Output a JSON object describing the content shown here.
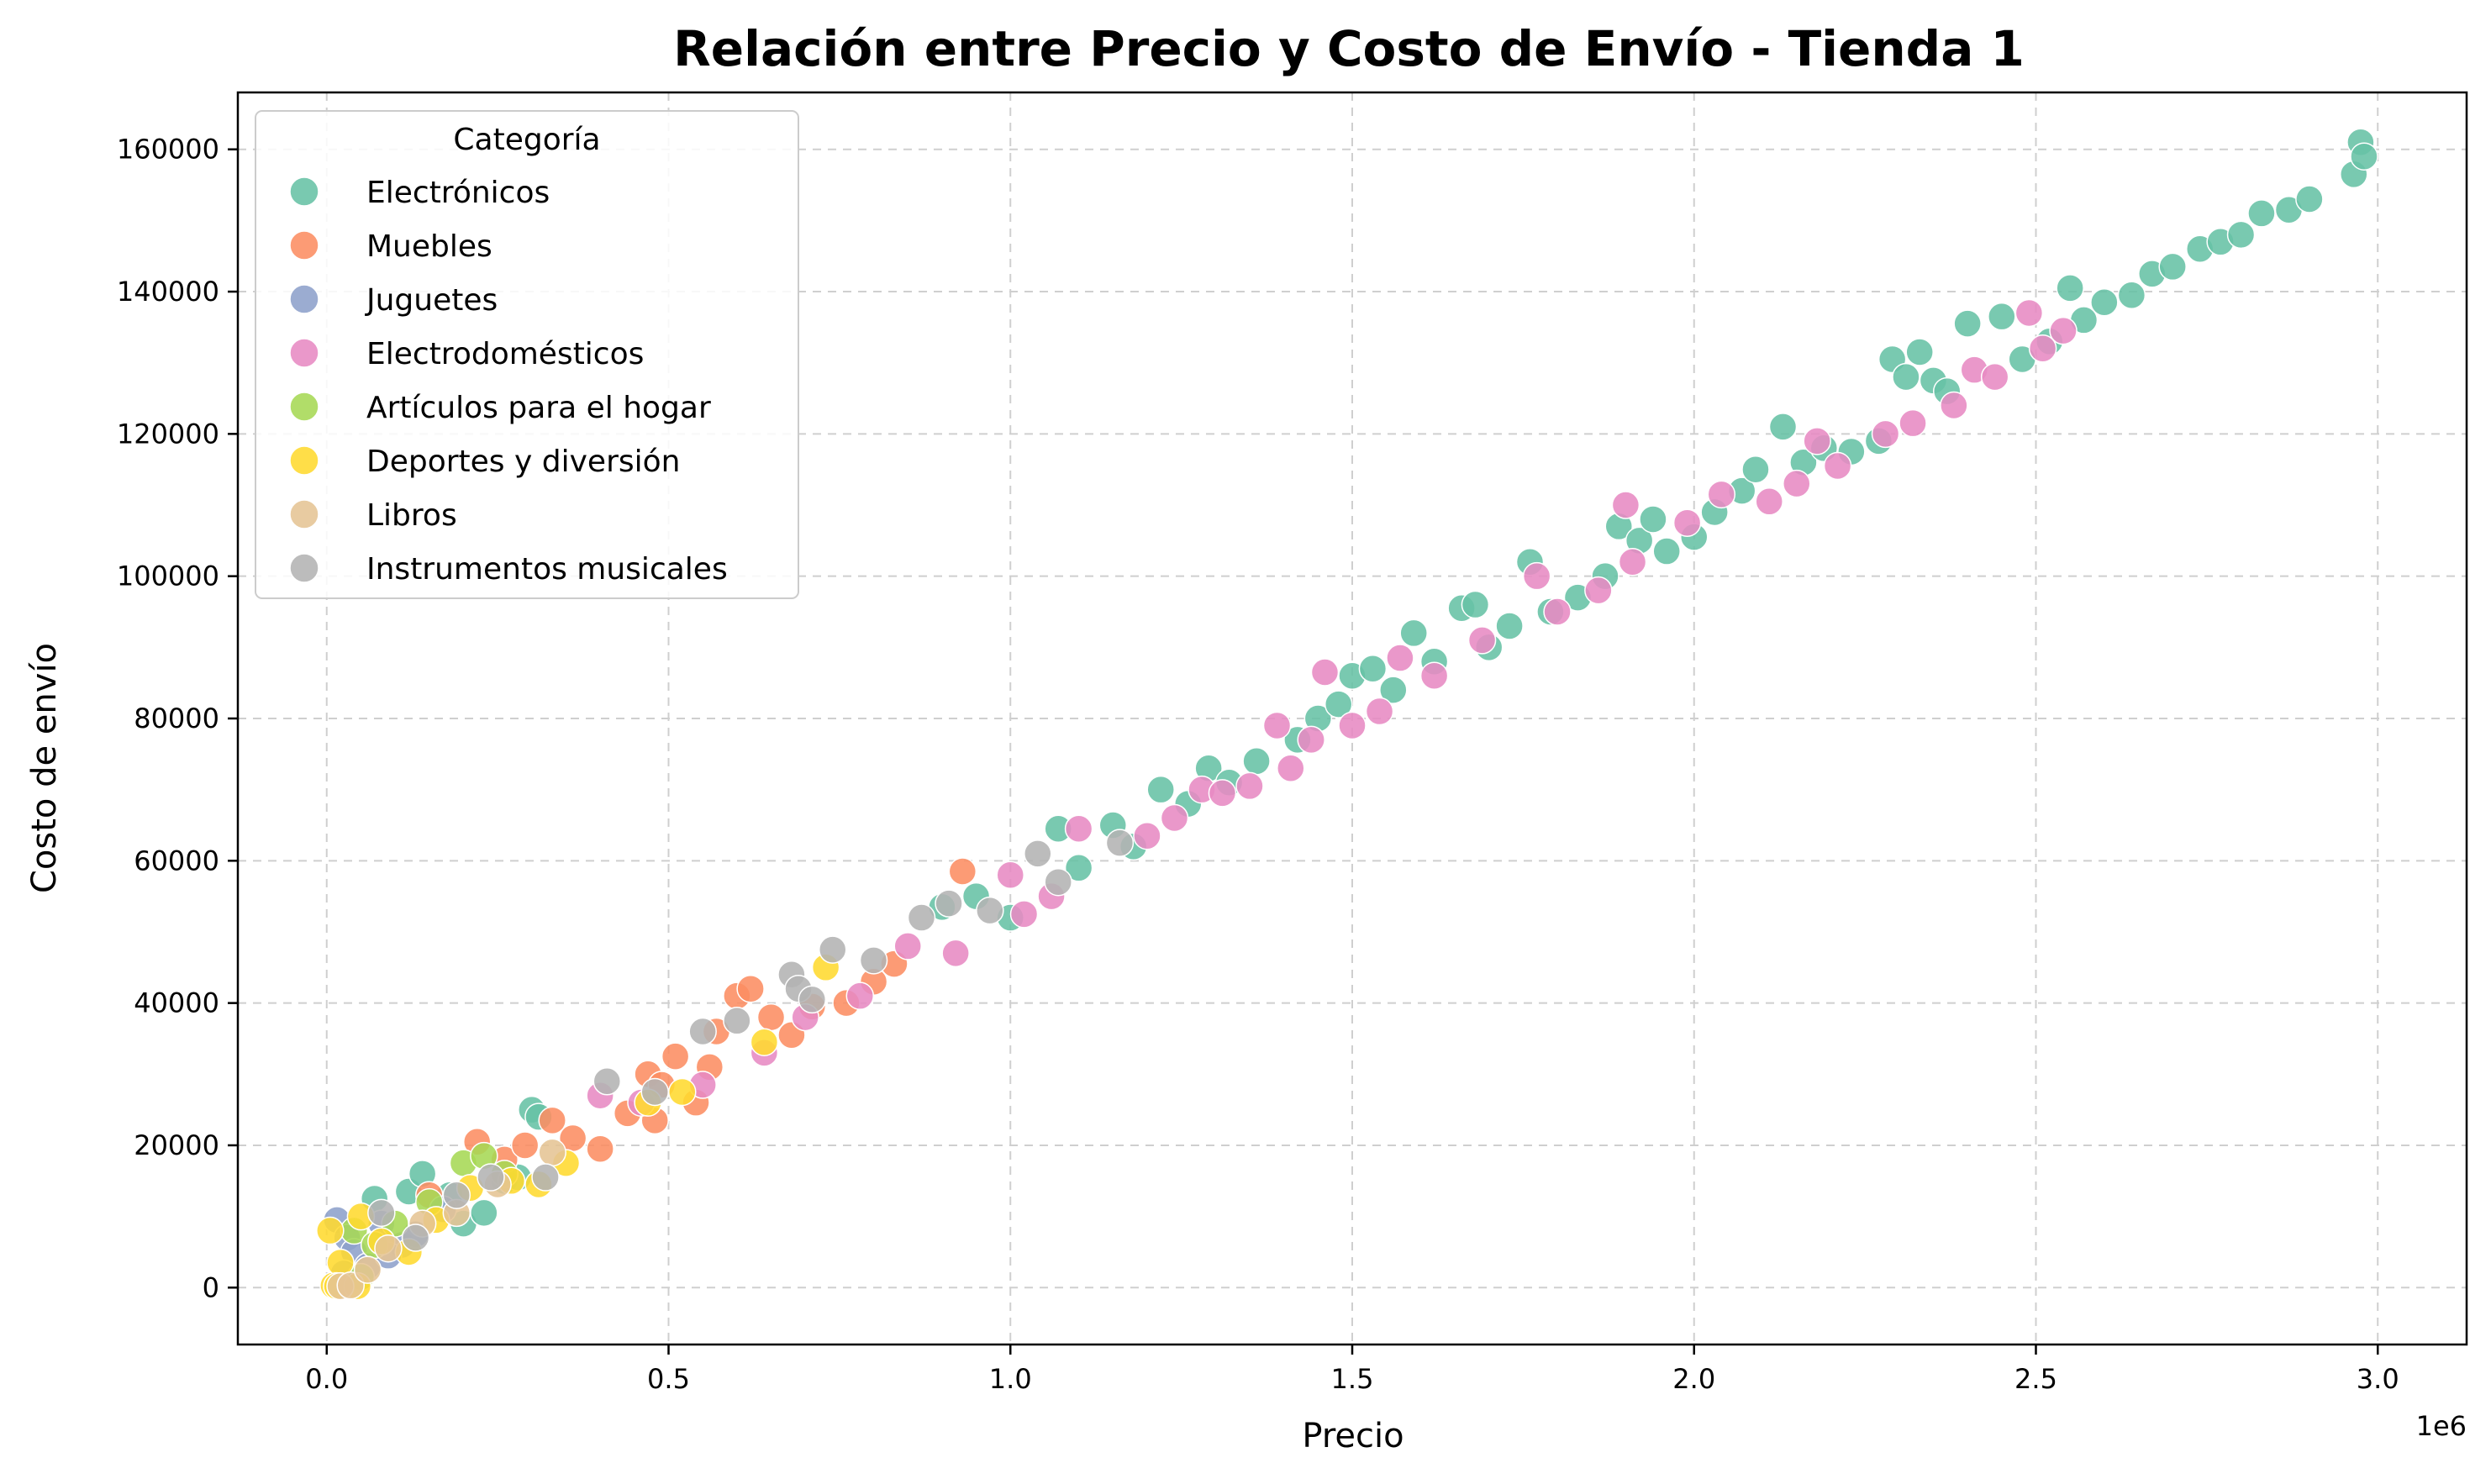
{
  "chart_data": {
    "type": "scatter",
    "title": "Relación entre Precio y Costo de Envío - Tienda 1",
    "xlabel": "Precio",
    "ylabel": "Costo de envío",
    "x_offset_label": "1e6",
    "xlim": [
      -130000,
      3130000
    ],
    "ylim": [
      -8000,
      168000
    ],
    "x_ticks": [
      0,
      500000,
      1000000,
      1500000,
      2000000,
      2500000,
      3000000
    ],
    "x_tick_labels": [
      "0.0",
      "0.5",
      "1.0",
      "1.5",
      "2.0",
      "2.5",
      "3.0"
    ],
    "y_ticks": [
      0,
      20000,
      40000,
      60000,
      80000,
      100000,
      120000,
      140000,
      160000
    ],
    "y_tick_labels": [
      "0",
      "20000",
      "40000",
      "60000",
      "80000",
      "100000",
      "120000",
      "140000",
      "160000"
    ],
    "grid": true,
    "legend": {
      "title": "Categoría",
      "placement": "top-left"
    },
    "series": [
      {
        "name": "Electrónicos",
        "color": "#66c2a5",
        "points": [
          [
            70000,
            12500
          ],
          [
            120000,
            13500
          ],
          [
            140000,
            16000
          ],
          [
            180000,
            13000
          ],
          [
            200000,
            9000
          ],
          [
            230000,
            10500
          ],
          [
            260000,
            15000
          ],
          [
            280000,
            15500
          ],
          [
            300000,
            25000
          ],
          [
            310000,
            24000
          ],
          [
            900000,
            53500
          ],
          [
            950000,
            55000
          ],
          [
            1000000,
            52000
          ],
          [
            1070000,
            64500
          ],
          [
            1100000,
            59000
          ],
          [
            1150000,
            65000
          ],
          [
            1180000,
            62000
          ],
          [
            1220000,
            70000
          ],
          [
            1260000,
            68000
          ],
          [
            1290000,
            73000
          ],
          [
            1320000,
            71000
          ],
          [
            1360000,
            74000
          ],
          [
            1420000,
            77000
          ],
          [
            1450000,
            80000
          ],
          [
            1480000,
            82000
          ],
          [
            1500000,
            86000
          ],
          [
            1530000,
            87000
          ],
          [
            1560000,
            84000
          ],
          [
            1590000,
            92000
          ],
          [
            1620000,
            88000
          ],
          [
            1660000,
            95500
          ],
          [
            1680000,
            96000
          ],
          [
            1700000,
            90000
          ],
          [
            1730000,
            93000
          ],
          [
            1760000,
            102000
          ],
          [
            1790000,
            95000
          ],
          [
            1830000,
            97000
          ],
          [
            1870000,
            100000
          ],
          [
            1890000,
            107000
          ],
          [
            1920000,
            105000
          ],
          [
            1940000,
            108000
          ],
          [
            1960000,
            103500
          ],
          [
            2000000,
            105500
          ],
          [
            2030000,
            109000
          ],
          [
            2070000,
            112000
          ],
          [
            2090000,
            115000
          ],
          [
            2130000,
            121000
          ],
          [
            2160000,
            116000
          ],
          [
            2190000,
            118000
          ],
          [
            2230000,
            117500
          ],
          [
            2270000,
            119000
          ],
          [
            2290000,
            130500
          ],
          [
            2310000,
            128000
          ],
          [
            2330000,
            131500
          ],
          [
            2350000,
            127500
          ],
          [
            2370000,
            126000
          ],
          [
            2400000,
            135500
          ],
          [
            2450000,
            136500
          ],
          [
            2480000,
            130500
          ],
          [
            2520000,
            133000
          ],
          [
            2550000,
            140500
          ],
          [
            2570000,
            136000
          ],
          [
            2600000,
            138500
          ],
          [
            2640000,
            139500
          ],
          [
            2670000,
            142500
          ],
          [
            2700000,
            143500
          ],
          [
            2740000,
            146000
          ],
          [
            2770000,
            147000
          ],
          [
            2800000,
            148000
          ],
          [
            2830000,
            151000
          ],
          [
            2870000,
            151500
          ],
          [
            2900000,
            153000
          ],
          [
            2965000,
            156500
          ],
          [
            2975000,
            161000
          ],
          [
            2980000,
            159000
          ]
        ]
      },
      {
        "name": "Muebles",
        "color": "#fc8d62",
        "points": [
          [
            150000,
            13000
          ],
          [
            220000,
            20500
          ],
          [
            260000,
            18000
          ],
          [
            290000,
            20000
          ],
          [
            330000,
            23500
          ],
          [
            360000,
            21000
          ],
          [
            400000,
            19500
          ],
          [
            440000,
            24500
          ],
          [
            470000,
            30000
          ],
          [
            490000,
            28500
          ],
          [
            510000,
            32500
          ],
          [
            540000,
            26000
          ],
          [
            570000,
            36000
          ],
          [
            600000,
            41000
          ],
          [
            620000,
            42000
          ],
          [
            650000,
            38000
          ],
          [
            680000,
            35500
          ],
          [
            710000,
            39500
          ],
          [
            760000,
            40000
          ],
          [
            800000,
            43000
          ],
          [
            830000,
            45500
          ],
          [
            930000,
            58500
          ],
          [
            480000,
            23500
          ],
          [
            560000,
            31000
          ]
        ]
      },
      {
        "name": "Juguetes",
        "color": "#8da0cb",
        "points": [
          [
            15000,
            9500
          ],
          [
            30000,
            7000
          ],
          [
            40000,
            5000
          ],
          [
            60000,
            3000
          ],
          [
            80000,
            9000
          ],
          [
            110000,
            6000
          ],
          [
            130000,
            7500
          ],
          [
            170000,
            11000
          ],
          [
            25000,
            2000
          ],
          [
            90000,
            4500
          ]
        ]
      },
      {
        "name": "Electrodomésticos",
        "color": "#e78ac3",
        "points": [
          [
            400000,
            27000
          ],
          [
            460000,
            26000
          ],
          [
            550000,
            28500
          ],
          [
            640000,
            33000
          ],
          [
            700000,
            38000
          ],
          [
            780000,
            41000
          ],
          [
            850000,
            48000
          ],
          [
            920000,
            47000
          ],
          [
            1000000,
            58000
          ],
          [
            1020000,
            52500
          ],
          [
            1060000,
            55000
          ],
          [
            1100000,
            64500
          ],
          [
            1200000,
            63500
          ],
          [
            1240000,
            66000
          ],
          [
            1280000,
            70000
          ],
          [
            1310000,
            69500
          ],
          [
            1350000,
            70500
          ],
          [
            1390000,
            79000
          ],
          [
            1410000,
            73000
          ],
          [
            1440000,
            77000
          ],
          [
            1460000,
            86500
          ],
          [
            1500000,
            79000
          ],
          [
            1540000,
            81000
          ],
          [
            1570000,
            88500
          ],
          [
            1620000,
            86000
          ],
          [
            1690000,
            91000
          ],
          [
            1770000,
            100000
          ],
          [
            1800000,
            95000
          ],
          [
            1860000,
            98000
          ],
          [
            1900000,
            110000
          ],
          [
            1910000,
            102000
          ],
          [
            1990000,
            107500
          ],
          [
            2040000,
            111500
          ],
          [
            2110000,
            110500
          ],
          [
            2150000,
            113000
          ],
          [
            2180000,
            119000
          ],
          [
            2210000,
            115500
          ],
          [
            2280000,
            120000
          ],
          [
            2320000,
            121500
          ],
          [
            2380000,
            124000
          ],
          [
            2410000,
            129000
          ],
          [
            2440000,
            128000
          ],
          [
            2490000,
            137000
          ],
          [
            2510000,
            132000
          ],
          [
            2540000,
            134500
          ]
        ]
      },
      {
        "name": "Artículos para el hogar",
        "color": "#a6d854",
        "points": [
          [
            40000,
            8000
          ],
          [
            70000,
            6000
          ],
          [
            100000,
            9000
          ],
          [
            150000,
            12000
          ],
          [
            200000,
            17500
          ],
          [
            230000,
            18500
          ],
          [
            260000,
            16000
          ],
          [
            50000,
            1500
          ]
        ]
      },
      {
        "name": "Deportes y diversión",
        "color": "#ffd92f",
        "points": [
          [
            5000,
            8000
          ],
          [
            10000,
            300
          ],
          [
            20000,
            3500
          ],
          [
            50000,
            10000
          ],
          [
            80000,
            6500
          ],
          [
            120000,
            5000
          ],
          [
            160000,
            9500
          ],
          [
            210000,
            14000
          ],
          [
            270000,
            15000
          ],
          [
            310000,
            14500
          ],
          [
            350000,
            17500
          ],
          [
            470000,
            26000
          ],
          [
            520000,
            27500
          ],
          [
            640000,
            34500
          ],
          [
            730000,
            45000
          ],
          [
            15000,
            200
          ],
          [
            45000,
            200
          ]
        ]
      },
      {
        "name": "Libros",
        "color": "#e5c494",
        "points": [
          [
            20000,
            200
          ],
          [
            35000,
            300
          ],
          [
            60000,
            2500
          ],
          [
            90000,
            5500
          ],
          [
            140000,
            9000
          ],
          [
            190000,
            10500
          ],
          [
            250000,
            14500
          ],
          [
            330000,
            19000
          ]
        ]
      },
      {
        "name": "Instrumentos musicales",
        "color": "#b3b3b3",
        "points": [
          [
            80000,
            10500
          ],
          [
            130000,
            7000
          ],
          [
            190000,
            13000
          ],
          [
            240000,
            15500
          ],
          [
            320000,
            15500
          ],
          [
            410000,
            29000
          ],
          [
            480000,
            27500
          ],
          [
            550000,
            36000
          ],
          [
            600000,
            37500
          ],
          [
            680000,
            44000
          ],
          [
            690000,
            42000
          ],
          [
            710000,
            40500
          ],
          [
            740000,
            47500
          ],
          [
            800000,
            46000
          ],
          [
            870000,
            52000
          ],
          [
            910000,
            54000
          ],
          [
            970000,
            53000
          ],
          [
            1070000,
            57000
          ],
          [
            1160000,
            62500
          ],
          [
            1040000,
            61000
          ]
        ]
      }
    ]
  }
}
